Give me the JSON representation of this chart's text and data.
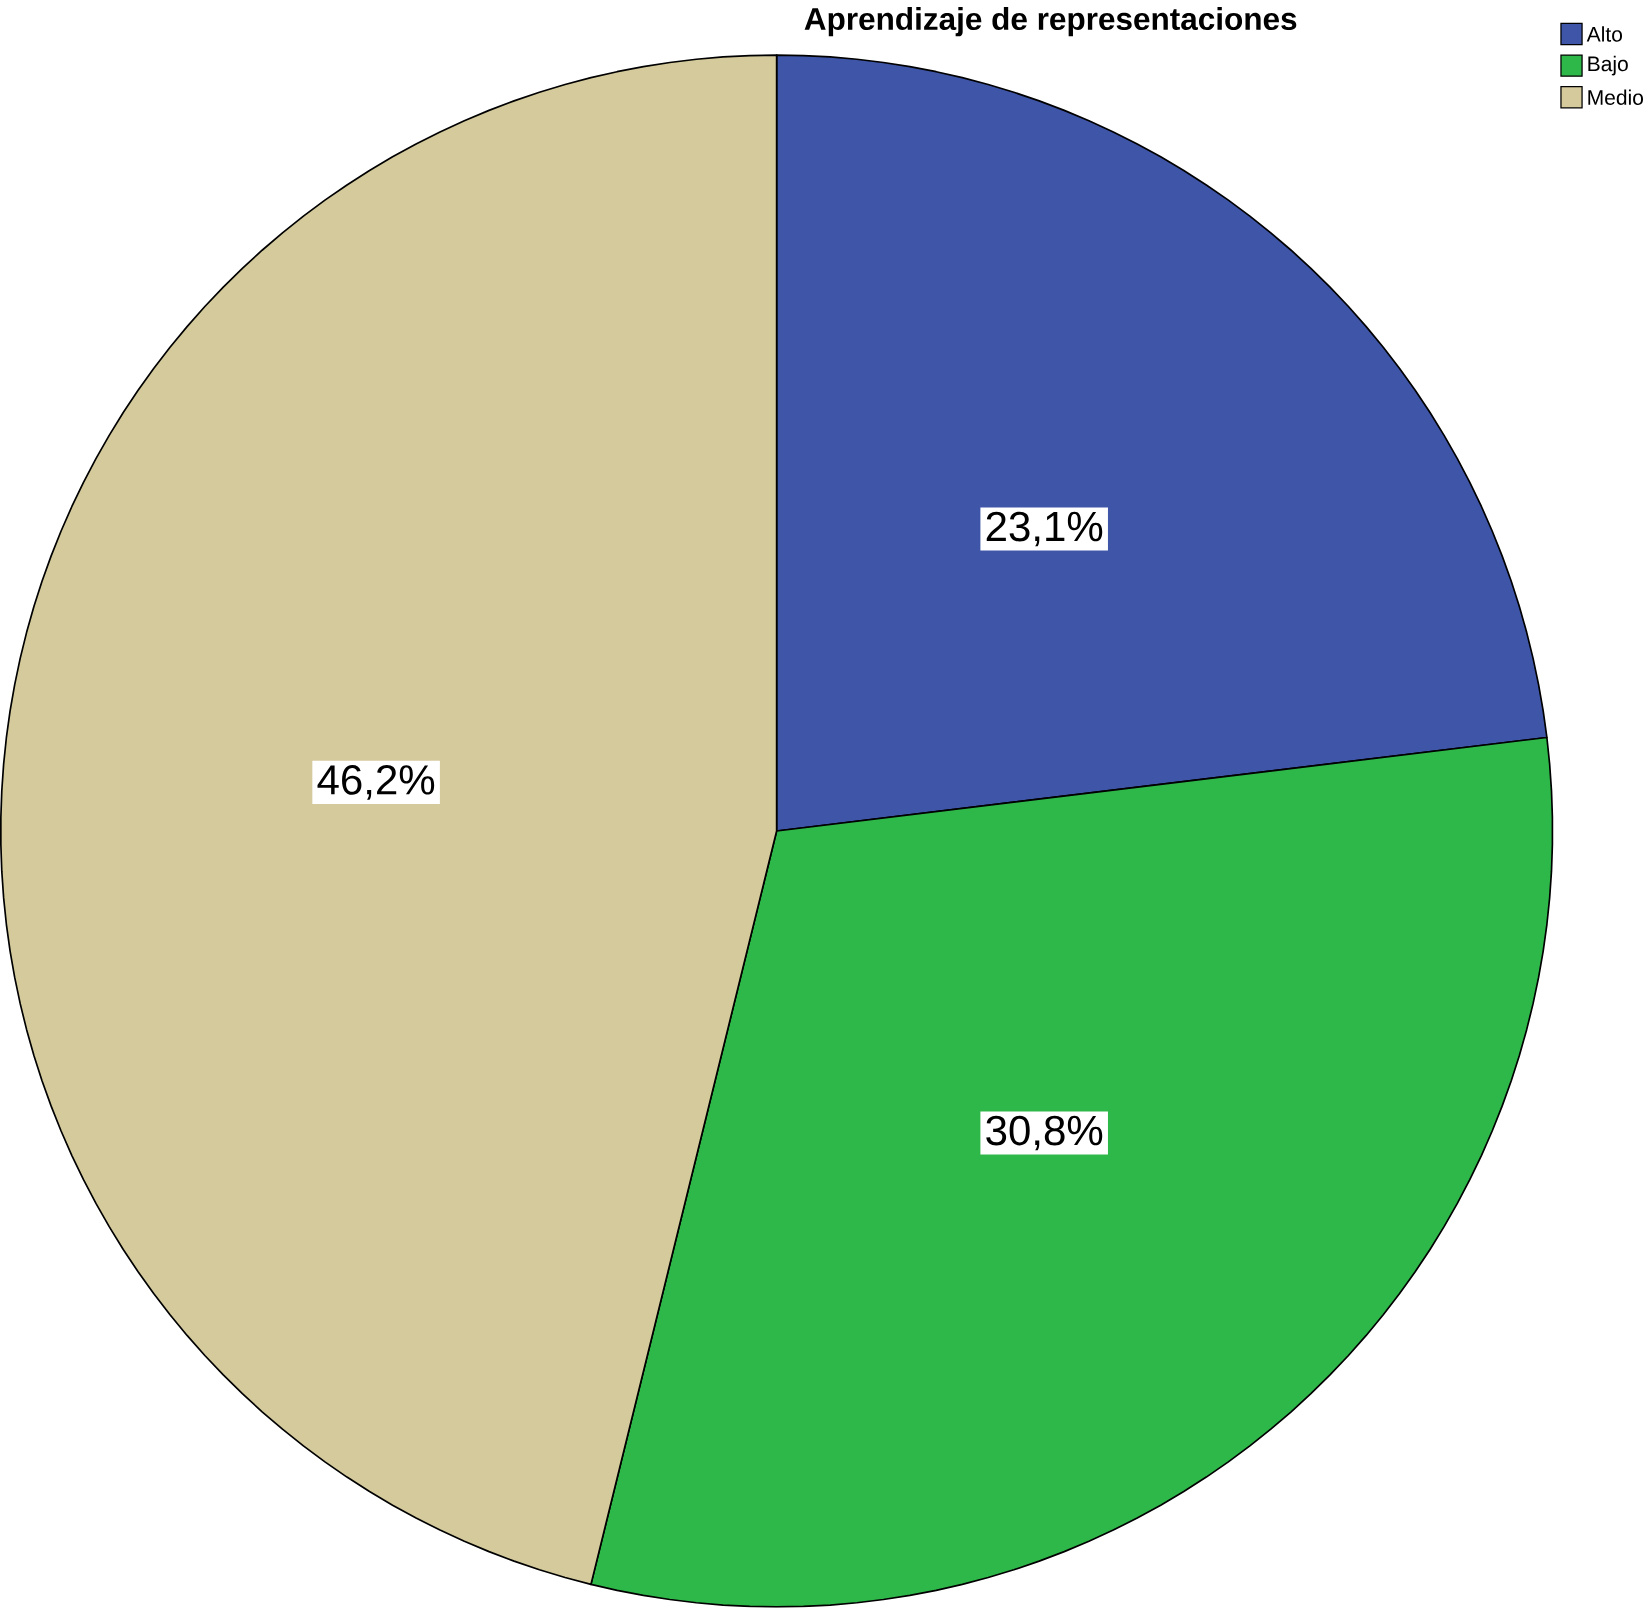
{
  "chart_data": {
    "type": "pie",
    "title": "Aprendizaje de representaciones",
    "categories": [
      "Alto",
      "Bajo",
      "Medio"
    ],
    "values": [
      23.1,
      30.8,
      46.2
    ],
    "colors": [
      "#3f56a8",
      "#2fb84a",
      "#d4ca9c"
    ],
    "value_labels": [
      "23,1%",
      "30,8%",
      "46,2%"
    ],
    "legend": "top right"
  }
}
